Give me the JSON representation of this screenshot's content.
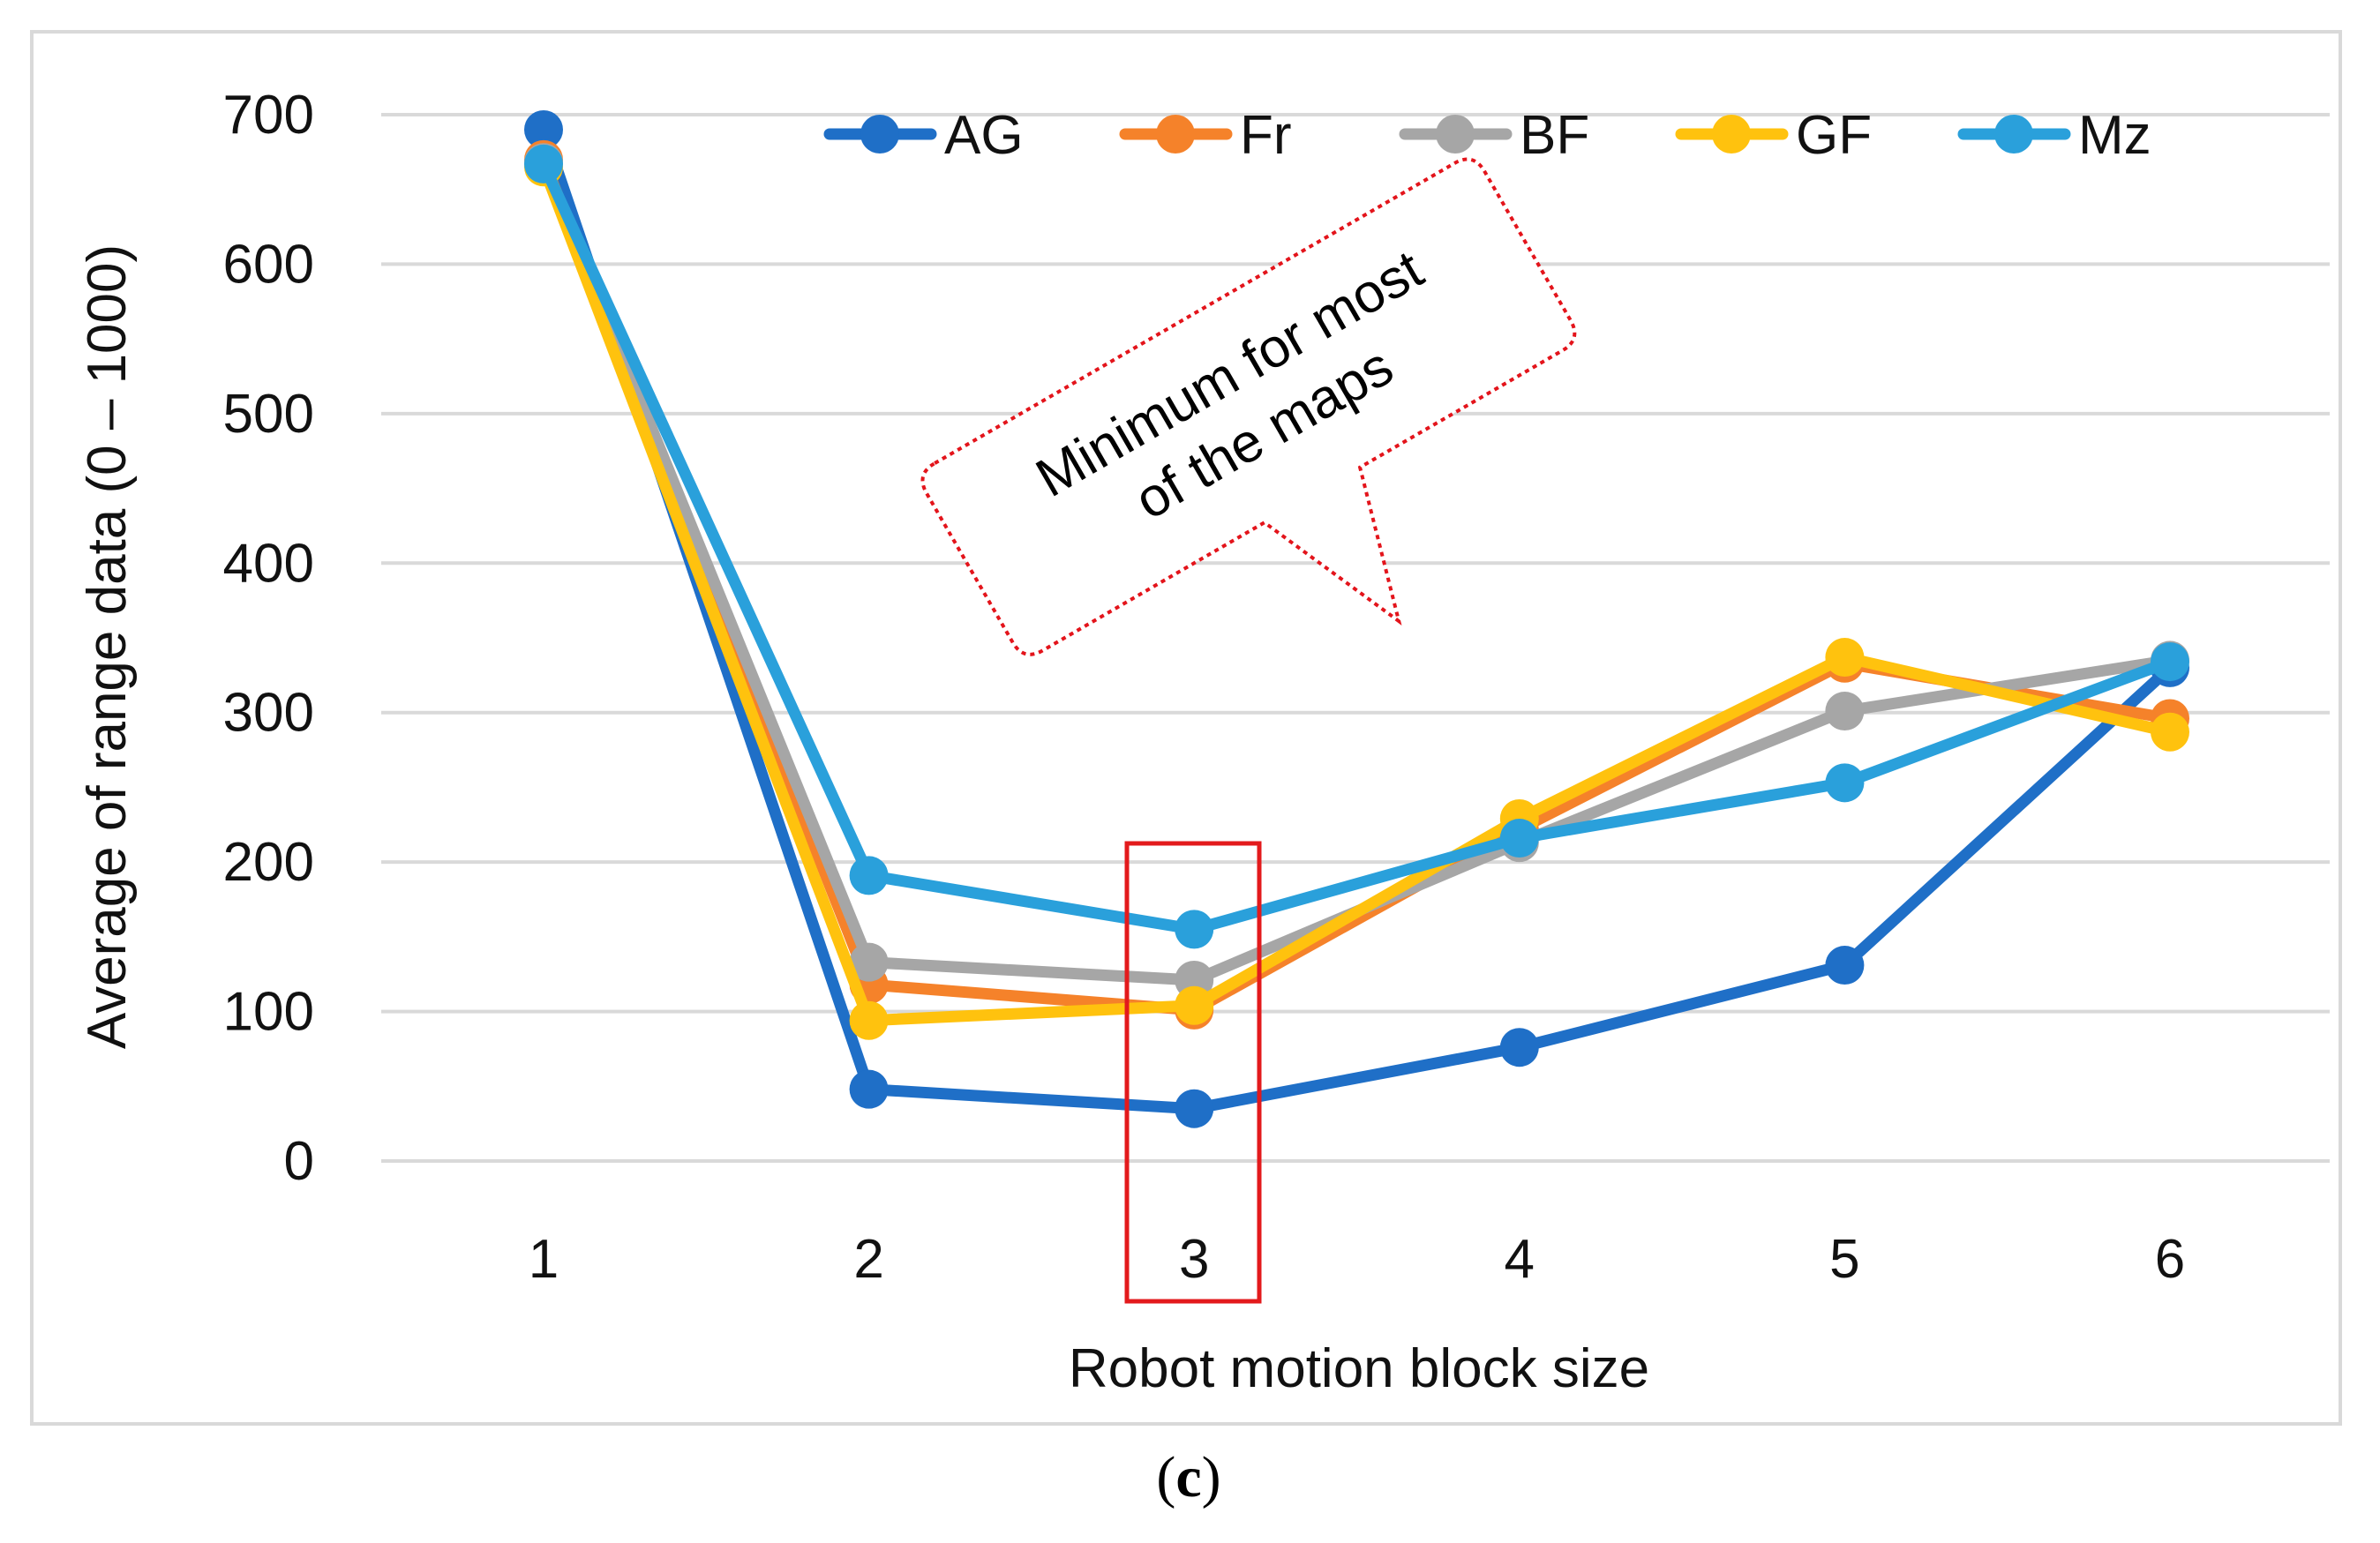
{
  "chart_data": {
    "type": "line",
    "xlabel": "Robot motion block size",
    "ylabel": "Average of range data (0 – 1000)",
    "categories": [
      "1",
      "2",
      "3",
      "4",
      "5",
      "6"
    ],
    "ylim": [
      0,
      700
    ],
    "yticks": [
      0,
      100,
      200,
      300,
      400,
      500,
      600,
      700
    ],
    "grid": true,
    "legend_position": "top-right",
    "series": [
      {
        "name": "AG",
        "color": "#1f6fc7",
        "values": [
          690,
          48,
          35,
          76,
          131,
          330
        ]
      },
      {
        "name": "Fr",
        "color": "#f5822a",
        "values": [
          670,
          118,
          101,
          222,
          333,
          296
        ]
      },
      {
        "name": "BF",
        "color": "#a6a6a6",
        "values": [
          668,
          133,
          121,
          213,
          301,
          335
        ]
      },
      {
        "name": "GF",
        "color": "#ffc20e",
        "values": [
          665,
          94,
          104,
          229,
          337,
          287
        ]
      },
      {
        "name": "Mz",
        "color": "#2aa0db",
        "values": [
          667,
          191,
          155,
          216,
          253,
          334
        ]
      }
    ],
    "annotation": {
      "lines": [
        "Minimum for most",
        "of the maps"
      ],
      "highlight_category": "3",
      "callout_color": "#e3141b",
      "box_color": "#e31a1c"
    },
    "caption_parts": [
      "(",
      "c",
      ")"
    ]
  }
}
